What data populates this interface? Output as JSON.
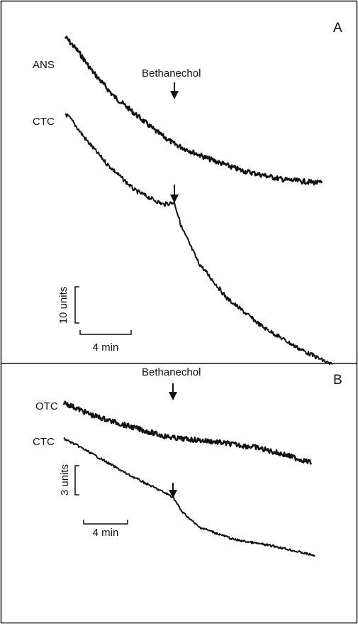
{
  "panels": [
    {
      "label": "A",
      "annotation": "Bethanechol",
      "traces": [
        "ANS",
        "CTC"
      ],
      "scale_bar": {
        "y": "10 units",
        "x": "4 min"
      }
    },
    {
      "label": "B",
      "annotation": "Bethanechol",
      "traces": [
        "OTC",
        "CTC"
      ],
      "scale_bar": {
        "y": "3 units",
        "x": "4 min"
      }
    }
  ]
}
